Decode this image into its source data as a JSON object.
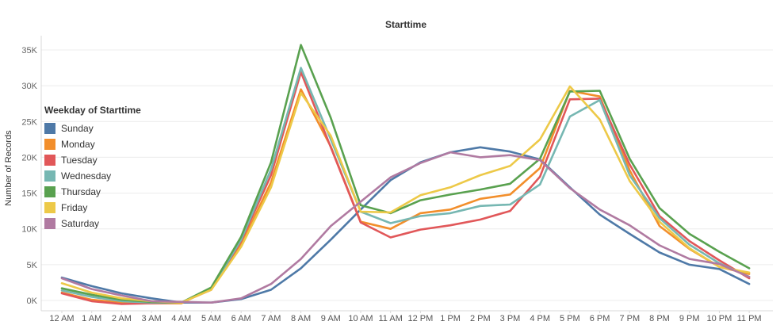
{
  "chart_data": {
    "type": "line",
    "title": "Starttime",
    "ylabel": "Number of Records",
    "xlabel": "",
    "x": [
      "12 AM",
      "1 AM",
      "2 AM",
      "3 AM",
      "4 AM",
      "5 AM",
      "6 AM",
      "7 AM",
      "8 AM",
      "9 AM",
      "10 AM",
      "11 AM",
      "12 PM",
      "1 PM",
      "2 PM",
      "3 PM",
      "4 PM",
      "5 PM",
      "6 PM",
      "7 PM",
      "8 PM",
      "9 PM",
      "10 PM",
      "11 PM"
    ],
    "ylim": [
      0,
      35000
    ],
    "yticks": [
      0,
      5000,
      10000,
      15000,
      20000,
      25000,
      30000,
      35000
    ],
    "ytick_labels": [
      "0K",
      "5K",
      "10K",
      "15K",
      "20K",
      "25K",
      "30K",
      "35K"
    ],
    "grid": true,
    "legend_title": "Weekday of Starttime",
    "legend_position": "left",
    "series": [
      {
        "name": "Sunday",
        "color": "#4e79a7",
        "values": [
          3200,
          2000,
          1000,
          300,
          -300,
          -300,
          200,
          1500,
          4500,
          8500,
          12700,
          16800,
          19300,
          20700,
          21400,
          20800,
          19700,
          15800,
          12000,
          9300,
          6700,
          5000,
          4400,
          2300
        ]
      },
      {
        "name": "Monday",
        "color": "#f28e2b",
        "values": [
          1100,
          100,
          -300,
          -400,
          -400,
          1700,
          7800,
          16500,
          29500,
          21500,
          11000,
          10000,
          12200,
          12700,
          14200,
          14800,
          18500,
          29300,
          28500,
          18200,
          10400,
          7200,
          4700,
          3700
        ]
      },
      {
        "name": "Tuesday",
        "color": "#e15759",
        "values": [
          1000,
          -100,
          -500,
          -400,
          -300,
          1500,
          8300,
          17500,
          31900,
          21400,
          10900,
          8800,
          9900,
          10500,
          11300,
          12500,
          17300,
          28100,
          28200,
          19000,
          11800,
          8300,
          5600,
          3100
        ]
      },
      {
        "name": "Wednesday",
        "color": "#76b7b2",
        "values": [
          1400,
          500,
          -100,
          -300,
          -300,
          1600,
          8500,
          18300,
          32500,
          22500,
          12400,
          10800,
          11800,
          12200,
          13200,
          13400,
          16200,
          25700,
          28000,
          17500,
          11500,
          7800,
          5200,
          3300
        ]
      },
      {
        "name": "Thursday",
        "color": "#59a14f",
        "values": [
          1700,
          800,
          100,
          -200,
          -300,
          1800,
          8900,
          19300,
          35700,
          25500,
          13300,
          12200,
          14000,
          14800,
          15500,
          16300,
          19800,
          29200,
          29300,
          19800,
          12900,
          9300,
          6800,
          4500
        ]
      },
      {
        "name": "Friday",
        "color": "#edc948",
        "values": [
          2400,
          1100,
          300,
          -100,
          -300,
          1500,
          7500,
          15800,
          29000,
          23000,
          12400,
          12300,
          14700,
          15800,
          17500,
          18800,
          22500,
          29900,
          25300,
          16700,
          11000,
          7300,
          4700,
          3900
        ]
      },
      {
        "name": "Saturday",
        "color": "#b07aa1",
        "values": [
          3100,
          1600,
          700,
          -100,
          -200,
          -300,
          300,
          2300,
          5800,
          10400,
          13800,
          17200,
          19200,
          20700,
          20000,
          20300,
          19600,
          15700,
          12700,
          10500,
          7700,
          5800,
          5100,
          3300
        ]
      }
    ]
  }
}
